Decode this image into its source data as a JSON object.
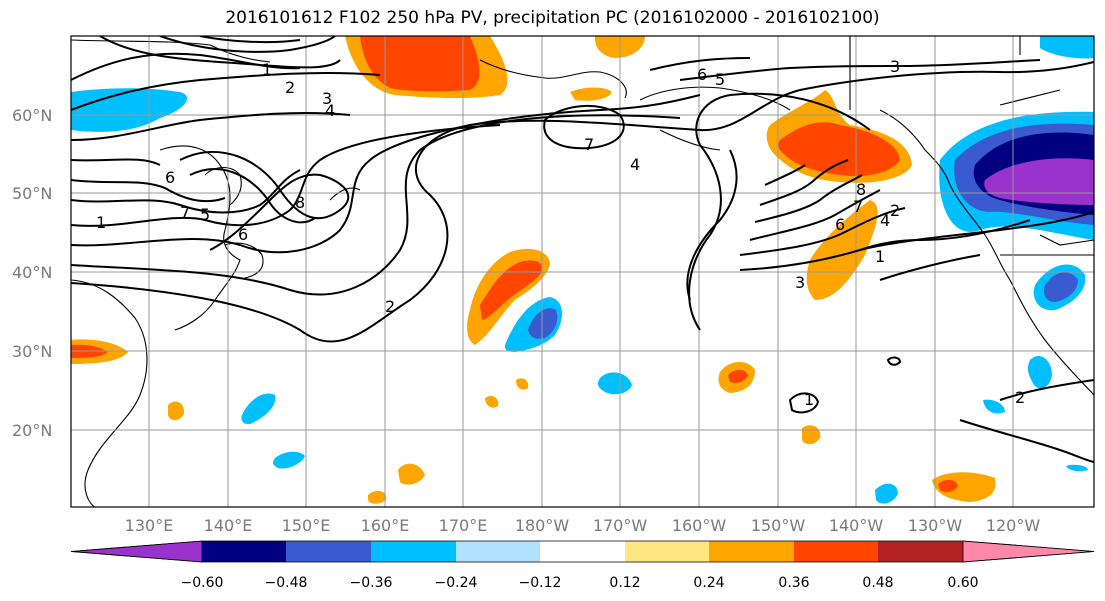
{
  "title": "2016101612 F102 250 hPa PV, precipitation PC (2016102000 - 2016102100)",
  "lat_labels": [
    "60°N",
    "50°N",
    "40°N",
    "30°N",
    "20°N"
  ],
  "lon_labels": [
    "130°E",
    "140°E",
    "150°E",
    "160°E",
    "170°E",
    "180°W",
    "170°W",
    "160°W",
    "150°W",
    "140°W",
    "130°W",
    "120°W"
  ],
  "colorbar": {
    "ticks": [
      "−0.60",
      "−0.48",
      "−0.36",
      "−0.24",
      "−0.12",
      "0.12",
      "0.24",
      "0.36",
      "0.48",
      "0.60"
    ],
    "colors": [
      "#9933cc",
      "#000080",
      "#3a5bd0",
      "#00bfff",
      "#b0e2ff",
      "#ffffff",
      "#ffe680",
      "#ffa500",
      "#ff4500",
      "#b22222",
      "#ff88aa"
    ]
  },
  "pv_contour_labels": [
    "1",
    "2",
    "3",
    "4",
    "5",
    "6",
    "7",
    "8"
  ],
  "contour_label_instances": [
    "1",
    "2",
    "3",
    "4",
    "6",
    "7",
    "8",
    "2",
    "5",
    "6",
    "7",
    "4",
    "3",
    "4",
    "6",
    "7",
    "8",
    "2",
    "1",
    "3",
    "5",
    "6",
    "1",
    "1",
    "2"
  ]
}
